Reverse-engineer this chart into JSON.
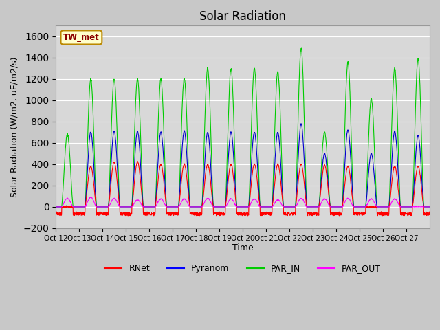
{
  "title": "Solar Radiation",
  "ylabel": "Solar Radiation (W/m2, uE/m2/s)",
  "xlabel": "Time",
  "ylim": [
    -200,
    1700
  ],
  "yticks": [
    -200,
    0,
    200,
    400,
    600,
    800,
    1000,
    1200,
    1400,
    1600
  ],
  "xtick_labels": [
    "Oct 12",
    "Oct 13",
    "Oct 14",
    "Oct 15",
    "Oct 16",
    "Oct 17",
    "Oct 18",
    "Oct 19",
    "Oct 20",
    "Oct 21",
    "Oct 22",
    "Oct 23",
    "Oct 24",
    "Oct 25",
    "Oct 26",
    "Oct 27"
  ],
  "legend_entries": [
    "RNet",
    "Pyranom",
    "PAR_IN",
    "PAR_OUT"
  ],
  "legend_colors": [
    "#ff0000",
    "#0000ff",
    "#00cc00",
    "#ff00ff"
  ],
  "annotation_text": "TW_met",
  "title_fontsize": 12,
  "axis_fontsize": 9,
  "num_days": 16,
  "series_colors": {
    "RNet": "#ff0000",
    "Pyranom": "#0000cc",
    "PAR_IN": "#00cc00",
    "PAR_OUT": "#ff00ff"
  },
  "par_in_peaks": [
    680,
    1200,
    1200,
    1200,
    1200,
    1200,
    1300,
    1300,
    1300,
    1270,
    1490,
    700,
    1360,
    1010,
    1300,
    1390
  ],
  "pyranom_peaks": [
    0,
    700,
    710,
    710,
    700,
    710,
    700,
    700,
    700,
    700,
    780,
    500,
    720,
    500,
    710,
    670
  ],
  "rnet_peaks": [
    0,
    380,
    420,
    420,
    400,
    400,
    400,
    400,
    400,
    400,
    400,
    390,
    380,
    0,
    380,
    380
  ],
  "par_out_peaks": [
    80,
    90,
    80,
    65,
    75,
    75,
    80,
    75,
    75,
    65,
    80,
    75,
    80,
    75,
    75,
    0
  ]
}
